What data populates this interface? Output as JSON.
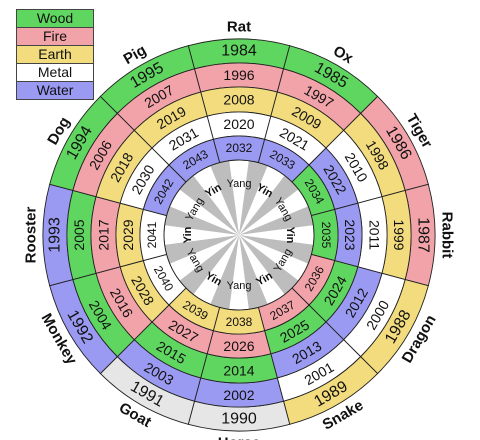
{
  "legend": [
    {
      "label": "Wood",
      "color": "#5fd65f"
    },
    {
      "label": "Fire",
      "color": "#f2a3a9"
    },
    {
      "label": "Earth",
      "color": "#f3dc7e"
    },
    {
      "label": "Metal",
      "color": "#ffffff"
    },
    {
      "label": "Water",
      "color": "#9a9af2"
    }
  ],
  "colors": {
    "wood": "#5fd65f",
    "fire": "#f2a3a9",
    "earth": "#f3dc7e",
    "metal": "#ffffff",
    "water": "#9a9af2",
    "metal_outer": "#e6e6e6",
    "hub_gray": "#bdbdbd"
  },
  "animals": [
    "Rat",
    "Ox",
    "Tiger",
    "Rabbit",
    "Dragon",
    "Snake",
    "Horse",
    "Goat",
    "Monkey",
    "Rooster",
    "Dog",
    "Pig"
  ],
  "rings": [
    [
      "1984",
      "1985",
      "1986",
      "1987",
      "1988",
      "1989",
      "1990",
      "1991",
      "1992",
      "1993",
      "1994",
      "1995"
    ],
    [
      "1996",
      "1997",
      "1998",
      "1999",
      "2000",
      "2001",
      "2002",
      "2003",
      "2004",
      "2005",
      "2006",
      "2007"
    ],
    [
      "2008",
      "2009",
      "2010",
      "2011",
      "2012",
      "2013",
      "2014",
      "2015",
      "2016",
      "2017",
      "2018",
      "2019"
    ],
    [
      "2020",
      "2021",
      "2022",
      "2023",
      "2024",
      "2025",
      "2026",
      "2027",
      "2028",
      "2029",
      "2030",
      "2031"
    ],
    [
      "2032",
      "2033",
      "2034",
      "2035",
      "2036",
      "2037",
      "2038",
      "2039",
      "2040",
      "2041",
      "2042",
      "2043"
    ]
  ],
  "elements": [
    [
      "wood",
      "wood",
      "fire",
      "fire",
      "earth",
      "earth",
      "metal",
      "metal",
      "water",
      "water",
      "wood",
      "wood"
    ],
    [
      "fire",
      "fire",
      "earth",
      "earth",
      "metal",
      "metal",
      "water",
      "water",
      "wood",
      "wood",
      "fire",
      "fire"
    ],
    [
      "earth",
      "earth",
      "metal",
      "metal",
      "water",
      "water",
      "wood",
      "wood",
      "fire",
      "fire",
      "earth",
      "earth"
    ],
    [
      "metal",
      "metal",
      "water",
      "water",
      "wood",
      "wood",
      "fire",
      "fire",
      "earth",
      "earth",
      "metal",
      "metal"
    ],
    [
      "water",
      "water",
      "wood",
      "wood",
      "fire",
      "fire",
      "earth",
      "earth",
      "metal",
      "metal",
      "water",
      "water"
    ]
  ],
  "polarity": [
    "Yang",
    "Yin",
    "Yang",
    "Yin",
    "Yang",
    "Yin",
    "Yang",
    "Yin",
    "Yang",
    "Yin",
    "Yang",
    "Yin"
  ]
}
